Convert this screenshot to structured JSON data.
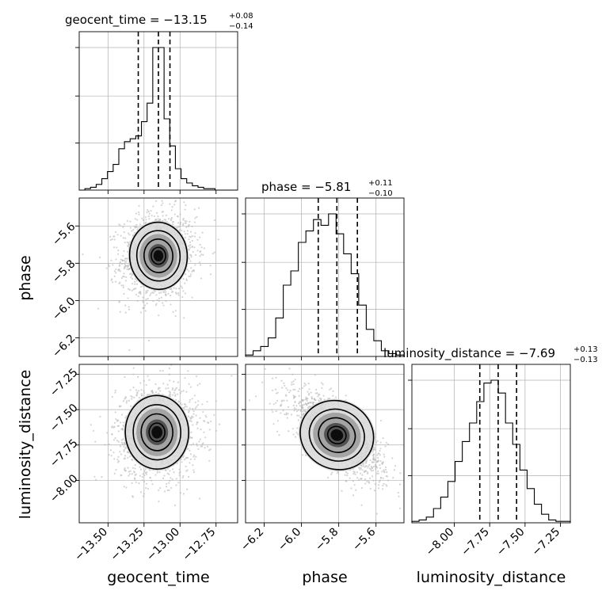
{
  "chart_data": {
    "type": "corner",
    "parameters": [
      "geocent_time",
      "phase",
      "luminosity_distance"
    ],
    "titles": [
      {
        "param": "geocent_time",
        "text": "geocent_time = −13.15",
        "plus": "+0.08",
        "minus": "−0.14"
      },
      {
        "param": "phase",
        "text": "phase = −5.81",
        "plus": "+0.11",
        "minus": "−0.10"
      },
      {
        "param": "luminosity_distance",
        "text": "luminosity_distance = −7.69",
        "plus": "+0.13",
        "minus": "−0.13"
      }
    ],
    "axes": {
      "geocent_time": {
        "range": [
          -13.7,
          -12.6
        ],
        "ticks": [
          -13.5,
          -13.25,
          -13.0,
          -12.75
        ],
        "tick_labels": [
          "−13.50",
          "−13.25",
          "−13.00",
          "−12.75"
        ]
      },
      "phase": {
        "range": [
          -6.3,
          -5.45
        ],
        "ticks": [
          -6.2,
          -6.0,
          -5.8,
          -5.6
        ],
        "tick_labels": [
          "−6.2",
          "−6.0",
          "−5.8",
          "−5.6"
        ]
      },
      "luminosity_distance": {
        "range": [
          -8.3,
          -7.18
        ],
        "ticks": [
          -8.0,
          -7.75,
          -7.5,
          -7.25
        ],
        "tick_labels": [
          "−8.00",
          "−7.75",
          "−7.50",
          "−7.25"
        ]
      }
    },
    "quantiles": {
      "geocent_time": [
        -13.29,
        -13.15,
        -13.07
      ],
      "phase": [
        -5.91,
        -5.81,
        -5.7
      ],
      "luminosity_distance": [
        -7.82,
        -7.69,
        -7.56
      ]
    },
    "histograms": {
      "geocent_time": {
        "range": [
          -13.7,
          -12.6
        ],
        "counts": [
          0,
          0.01,
          0.02,
          0.04,
          0.08,
          0.13,
          0.18,
          0.29,
          0.34,
          0.36,
          0.38,
          0.48,
          0.61,
          1.0,
          1.0,
          0.5,
          0.31,
          0.15,
          0.08,
          0.05,
          0.03,
          0.02,
          0.01,
          0.01,
          0,
          0,
          0,
          0
        ]
      },
      "phase": {
        "range": [
          -6.3,
          -5.45
        ],
        "counts": [
          0.01,
          0.04,
          0.07,
          0.13,
          0.27,
          0.5,
          0.6,
          0.8,
          0.88,
          0.96,
          0.92,
          1.0,
          0.86,
          0.72,
          0.58,
          0.36,
          0.19,
          0.11,
          0.04,
          0.02,
          0.01
        ]
      },
      "luminosity_distance": {
        "range": [
          -8.3,
          -7.18
        ],
        "counts": [
          0.01,
          0.02,
          0.04,
          0.1,
          0.18,
          0.29,
          0.43,
          0.57,
          0.7,
          0.85,
          0.98,
          1.0,
          0.91,
          0.7,
          0.55,
          0.37,
          0.24,
          0.13,
          0.06,
          0.02,
          0.01,
          0.01
        ]
      }
    },
    "pairs": [
      {
        "x": "geocent_time",
        "y": "phase",
        "center": [
          -13.15,
          -5.76
        ],
        "sigma": [
          0.1,
          0.09
        ],
        "rho": 0.1
      },
      {
        "x": "geocent_time",
        "y": "luminosity_distance",
        "center": [
          -13.16,
          -7.66
        ],
        "sigma": [
          0.11,
          0.13
        ],
        "rho": 0.05
      },
      {
        "x": "phase",
        "y": "luminosity_distance",
        "center": [
          -5.81,
          -7.68
        ],
        "sigma": [
          0.1,
          0.12
        ],
        "rho": -0.72
      }
    ],
    "grid": true,
    "legend": "none"
  }
}
